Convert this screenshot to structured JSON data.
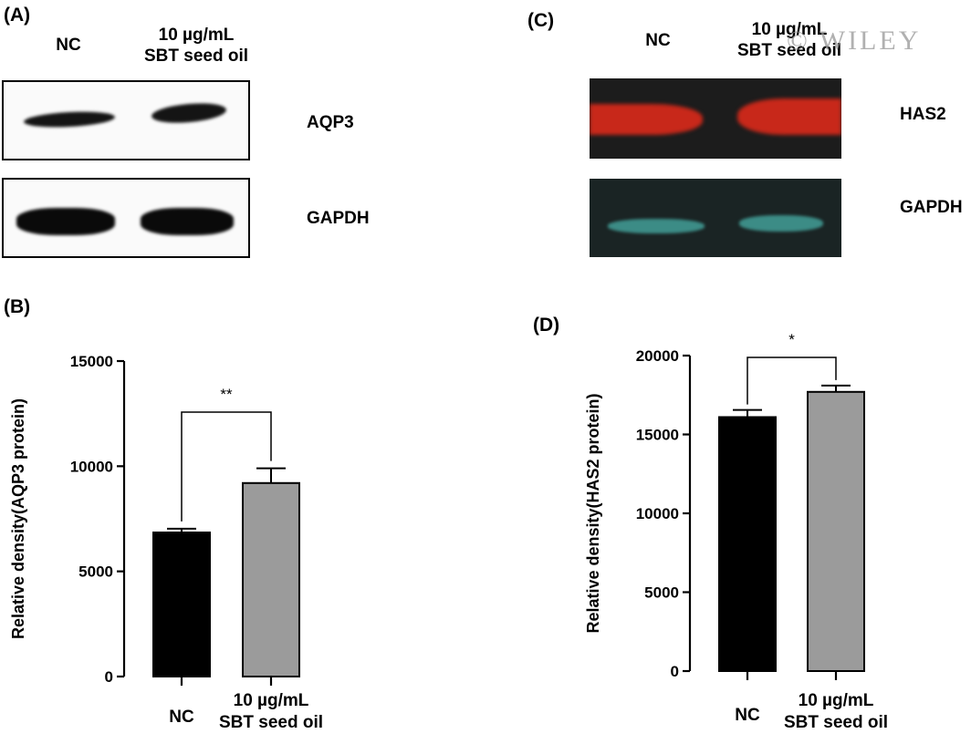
{
  "panels": {
    "a": {
      "letter": "(A)",
      "lanes": [
        "NC",
        "10 µg/mL",
        "SBT seed oil"
      ],
      "proteins": [
        "AQP3",
        "GAPDH"
      ]
    },
    "c": {
      "letter": "(C)",
      "lanes": [
        "NC",
        "10 µg/mL",
        "SBT seed oil"
      ],
      "proteins": [
        "HAS2",
        "GAPDH"
      ]
    },
    "b": {
      "letter": "(B)"
    },
    "d": {
      "letter": "(D)"
    }
  },
  "watermark": "© WILEY",
  "colors": {
    "nc_bar": "#000000",
    "treated_bar": "#9b9b9b",
    "has2_band": "#c8281a",
    "gapdh_band_c": "#3c8c86",
    "blot_c_bg": "#1c1c1c"
  },
  "chart_data": [
    {
      "panel": "B",
      "type": "bar",
      "categories": [
        "NC",
        "10 µg/mL SBT seed oil"
      ],
      "category_lines": [
        [
          "NC"
        ],
        [
          "10 µg/mL",
          "SBT seed oil"
        ]
      ],
      "values": [
        6850,
        9200
      ],
      "errors": [
        180,
        700
      ],
      "ylabel": "Relative density(AQP3 protein)",
      "ylim": [
        0,
        15000
      ],
      "yticks": [
        0,
        5000,
        10000,
        15000
      ],
      "significance": "**"
    },
    {
      "panel": "D",
      "type": "bar",
      "categories": [
        "NC",
        "10 µg/mL SBT seed oil"
      ],
      "category_lines": [
        [
          "NC"
        ],
        [
          "10 µg/mL",
          "SBT seed oil"
        ]
      ],
      "values": [
        16100,
        17700
      ],
      "errors": [
        450,
        400
      ],
      "ylabel": "Relative density(HAS2 protein)",
      "ylim": [
        0,
        20000
      ],
      "yticks": [
        0,
        5000,
        10000,
        15000,
        20000
      ],
      "significance": "*"
    }
  ]
}
